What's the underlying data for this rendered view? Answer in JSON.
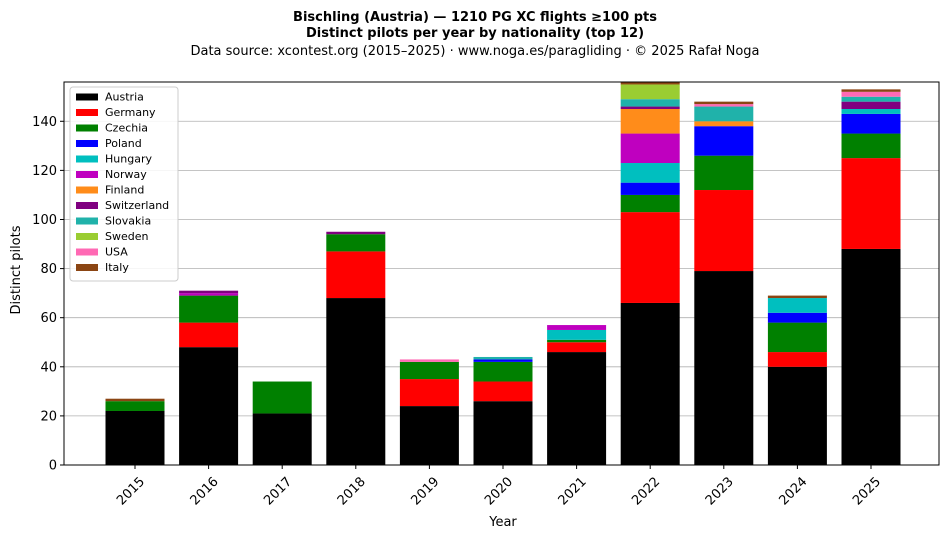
{
  "chart_data": {
    "type": "bar",
    "stacked": true,
    "title_lines": [
      "Bischling (Austria)  —  1210 PG XC flights ≥100 pts",
      "Distinct pilots per year by nationality (top 12)"
    ],
    "subtitle": "Data source: xcontest.org (2015–2025)  ·  www.noga.es/paragliding  ·  © 2025 Rafał Noga",
    "xlabel": "Year",
    "ylabel": "Distinct pilots",
    "ylim": [
      0,
      156
    ],
    "yticks": [
      0,
      20,
      40,
      60,
      80,
      100,
      120,
      140
    ],
    "grid": "horizontal",
    "legend_position": "top-left",
    "categories": [
      "2015",
      "2016",
      "2017",
      "2018",
      "2019",
      "2020",
      "2021",
      "2022",
      "2023",
      "2024",
      "2025"
    ],
    "series": [
      {
        "name": "Austria",
        "color": "#000000",
        "values": [
          22,
          48,
          21,
          68,
          24,
          26,
          46,
          66,
          79,
          40,
          88
        ]
      },
      {
        "name": "Germany",
        "color": "#ff0000",
        "values": [
          0,
          10,
          0,
          19,
          11,
          8,
          4,
          37,
          33,
          6,
          37
        ]
      },
      {
        "name": "Czechia",
        "color": "#008000",
        "values": [
          4,
          11,
          13,
          7,
          7,
          8,
          1,
          7,
          14,
          12,
          10
        ]
      },
      {
        "name": "Poland",
        "color": "#0000ff",
        "values": [
          0,
          0,
          0,
          0,
          0,
          1,
          0,
          5,
          12,
          4,
          8
        ]
      },
      {
        "name": "Hungary",
        "color": "#00bfbf",
        "values": [
          0,
          0,
          0,
          0,
          0,
          0,
          4,
          8,
          0,
          6,
          2
        ]
      },
      {
        "name": "Norway",
        "color": "#bf00bf",
        "values": [
          0,
          1,
          0,
          0,
          0,
          0,
          2,
          12,
          0,
          0,
          0
        ]
      },
      {
        "name": "Finland",
        "color": "#ff8c1a",
        "values": [
          0,
          0,
          0,
          0,
          0,
          0,
          0,
          10,
          2,
          0,
          0
        ]
      },
      {
        "name": "Switzerland",
        "color": "#800080",
        "values": [
          0,
          1,
          0,
          1,
          0,
          0,
          0,
          1,
          0,
          0,
          3
        ]
      },
      {
        "name": "Slovakia",
        "color": "#20b2aa",
        "values": [
          0,
          0,
          0,
          0,
          0,
          1,
          0,
          3,
          6,
          0,
          2
        ]
      },
      {
        "name": "Sweden",
        "color": "#9acd32",
        "values": [
          0,
          0,
          0,
          0,
          0,
          0,
          0,
          6,
          0,
          0,
          0
        ]
      },
      {
        "name": "USA",
        "color": "#ff69b4",
        "values": [
          0,
          0,
          0,
          0,
          1,
          0,
          0,
          0,
          1,
          0,
          2
        ]
      },
      {
        "name": "Italy",
        "color": "#8b4513",
        "values": [
          1,
          0,
          0,
          0,
          0,
          0,
          0,
          1,
          1,
          1,
          1
        ]
      }
    ]
  }
}
